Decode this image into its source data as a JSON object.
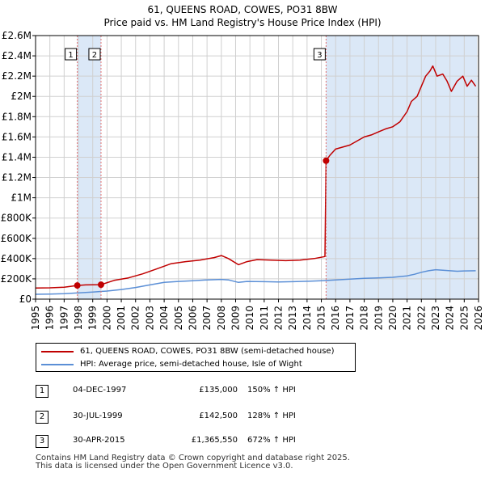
{
  "header": {
    "title_line1": "61, QUEENS ROAD, COWES, PO31 8BW",
    "title_line2": "Price paid vs. HM Land Registry's House Price Index (HPI)"
  },
  "legend": {
    "property_label": "61, QUEENS ROAD, COWES, PO31 8BW (semi-detached house)",
    "hpi_label": "HPI: Average price, semi-detached house, Isle of Wight"
  },
  "sales": [
    {
      "num": "1",
      "date": "04-DEC-1997",
      "price": "£135,000",
      "hpi": "150% ↑ HPI"
    },
    {
      "num": "2",
      "date": "30-JUL-1999",
      "price": "£142,500",
      "hpi": "128% ↑ HPI"
    },
    {
      "num": "3",
      "date": "30-APR-2015",
      "price": "£1,365,550",
      "hpi": "672% ↑ HPI"
    }
  ],
  "footer": {
    "line1": "Contains HM Land Registry data © Crown copyright and database right 2025.",
    "line2": "This data is licensed under the Open Government Licence v3.0."
  },
  "colors": {
    "property": "#c00000",
    "hpi": "#5b8fd6",
    "shade": "#dbe8f7",
    "grid": "#d0d0d0",
    "vline": "#e07070"
  },
  "chart_data": {
    "type": "line",
    "title": "61, QUEENS ROAD, COWES, PO31 8BW — Price paid vs. HM Land Registry's House Price Index (HPI)",
    "xlabel": "",
    "ylabel": "",
    "xlim": [
      1995,
      2026
    ],
    "ylim": [
      0,
      2600000
    ],
    "x_ticks": [
      "1995",
      "1996",
      "1997",
      "1998",
      "1999",
      "2000",
      "2001",
      "2002",
      "2003",
      "2004",
      "2005",
      "2006",
      "2007",
      "2008",
      "2009",
      "2010",
      "2011",
      "2012",
      "2013",
      "2014",
      "2015",
      "2016",
      "2017",
      "2018",
      "2019",
      "2020",
      "2021",
      "2022",
      "2023",
      "2024",
      "2025",
      "2026"
    ],
    "y_ticks": [
      {
        "value": 0,
        "label": "£0"
      },
      {
        "value": 200000,
        "label": "£200K"
      },
      {
        "value": 400000,
        "label": "£400K"
      },
      {
        "value": 600000,
        "label": "£600K"
      },
      {
        "value": 800000,
        "label": "£800K"
      },
      {
        "value": 1000000,
        "label": "£1M"
      },
      {
        "value": 1200000,
        "label": "£1.2M"
      },
      {
        "value": 1400000,
        "label": "£1.4M"
      },
      {
        "value": 1600000,
        "label": "£1.6M"
      },
      {
        "value": 1800000,
        "label": "£1.8M"
      },
      {
        "value": 2000000,
        "label": "£2M"
      },
      {
        "value": 2200000,
        "label": "£2.2M"
      },
      {
        "value": 2400000,
        "label": "£2.4M"
      },
      {
        "value": 2600000,
        "label": "£2.6M"
      }
    ],
    "grid": true,
    "shaded_periods": [
      [
        1997.92,
        1999.58
      ],
      [
        2015.33,
        2025.9
      ]
    ],
    "series": [
      {
        "name": "61, QUEENS ROAD, COWES, PO31 8BW (semi-detached house)",
        "x": [
          1995.0,
          1996.0,
          1997.0,
          1997.92,
          1998.5,
          1999.58,
          2000.5,
          2001.5,
          2002.5,
          2003.5,
          2004.5,
          2005.5,
          2006.5,
          2007.5,
          2008.0,
          2008.5,
          2009.2,
          2009.8,
          2010.5,
          2011.5,
          2012.5,
          2013.5,
          2014.5,
          2015.25,
          2015.33,
          2015.6,
          2016.0,
          2016.5,
          2017.0,
          2017.5,
          2018.0,
          2018.5,
          2019.0,
          2019.5,
          2020.0,
          2020.5,
          2021.0,
          2021.3,
          2021.7,
          2022.0,
          2022.3,
          2022.6,
          2022.8,
          2023.1,
          2023.5,
          2023.8,
          2024.1,
          2024.5,
          2024.9,
          2025.2,
          2025.5,
          2025.8
        ],
        "values": [
          110000,
          112000,
          118000,
          135000,
          140000,
          142500,
          185000,
          210000,
          250000,
          300000,
          350000,
          370000,
          385000,
          410000,
          430000,
          400000,
          340000,
          370000,
          390000,
          385000,
          380000,
          385000,
          400000,
          420000,
          1365550,
          1420000,
          1480000,
          1500000,
          1520000,
          1560000,
          1600000,
          1620000,
          1650000,
          1680000,
          1700000,
          1750000,
          1850000,
          1950000,
          2000000,
          2100000,
          2200000,
          2250000,
          2300000,
          2200000,
          2220000,
          2150000,
          2050000,
          2150000,
          2200000,
          2100000,
          2160000,
          2100000
        ]
      },
      {
        "name": "HPI: Average price, semi-detached house, Isle of Wight",
        "x": [
          1995.0,
          1996.0,
          1997.0,
          1998.0,
          1999.0,
          2000.0,
          2001.0,
          2002.0,
          2003.0,
          2004.0,
          2005.0,
          2006.0,
          2007.0,
          2008.0,
          2008.5,
          2009.2,
          2009.8,
          2011.0,
          2012.0,
          2013.0,
          2014.0,
          2015.0,
          2016.0,
          2017.0,
          2018.0,
          2019.0,
          2020.0,
          2021.0,
          2021.5,
          2022.0,
          2022.5,
          2023.0,
          2023.5,
          2024.0,
          2024.5,
          2025.0,
          2025.8
        ],
        "values": [
          48000,
          50000,
          54000,
          62000,
          70000,
          80000,
          95000,
          115000,
          140000,
          165000,
          175000,
          182000,
          190000,
          195000,
          190000,
          165000,
          175000,
          172000,
          170000,
          172000,
          176000,
          182000,
          190000,
          198000,
          205000,
          210000,
          215000,
          230000,
          245000,
          265000,
          280000,
          290000,
          285000,
          280000,
          275000,
          278000,
          280000
        ]
      }
    ],
    "sale_markers": [
      {
        "label": "1",
        "x": 1997.92,
        "value": 135000
      },
      {
        "label": "2",
        "x": 1999.58,
        "value": 142500
      },
      {
        "label": "3",
        "x": 2015.33,
        "value": 1365550
      }
    ]
  }
}
